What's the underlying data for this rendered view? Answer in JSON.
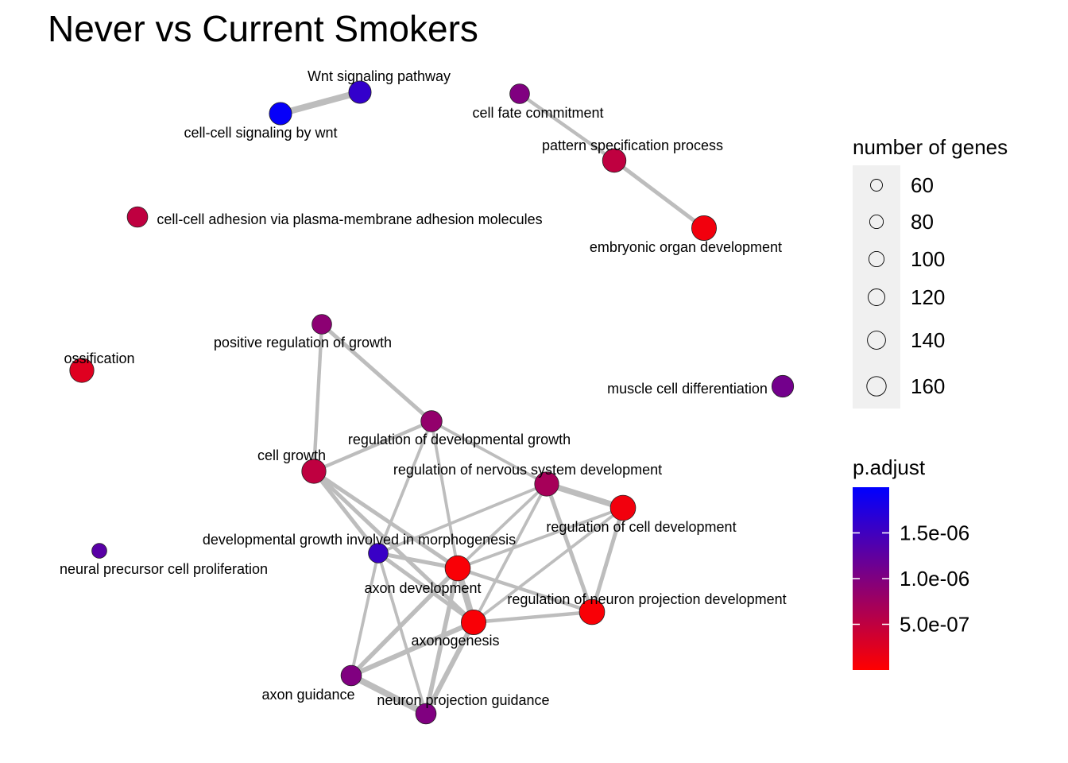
{
  "title": "Never vs Current Smokers",
  "nodes": [
    {
      "id": "wnt_pathway",
      "label": "Wnt signaling pathway",
      "genes": 90,
      "p_adjust": 1.6e-06
    },
    {
      "id": "wnt_cell",
      "label": "cell-cell signaling by wnt",
      "genes": 90,
      "p_adjust": 1.95e-06
    },
    {
      "id": "cell_fate",
      "label": "cell fate commitment",
      "genes": 70,
      "p_adjust": 1e-06
    },
    {
      "id": "pattern_spec",
      "label": "pattern specification process",
      "genes": 100,
      "p_adjust": 5e-07
    },
    {
      "id": "embryonic",
      "label": "embryonic organ development",
      "genes": 110,
      "p_adjust": 1e-07
    },
    {
      "id": "adhesion",
      "label": "cell-cell adhesion via plasma-membrane adhesion molecules",
      "genes": 75,
      "p_adjust": 5e-07
    },
    {
      "id": "pos_growth",
      "label": "positive regulation of growth",
      "genes": 70,
      "p_adjust": 9e-07
    },
    {
      "id": "ossification",
      "label": "ossification",
      "genes": 105,
      "p_adjust": 2.5e-07
    },
    {
      "id": "muscle",
      "label": "muscle cell differentiation",
      "genes": 85,
      "p_adjust": 1.1e-06
    },
    {
      "id": "reg_dev_growth",
      "label": "regulation of developmental growth",
      "genes": 80,
      "p_adjust": 8.5e-07
    },
    {
      "id": "cell_growth",
      "label": "cell growth",
      "genes": 105,
      "p_adjust": 5e-07
    },
    {
      "id": "reg_nervous",
      "label": "regulation of nervous system development",
      "genes": 105,
      "p_adjust": 7e-07
    },
    {
      "id": "reg_cell_dev",
      "label": "regulation of cell development",
      "genes": 115,
      "p_adjust": 1e-07
    },
    {
      "id": "dev_growth_morph",
      "label": "developmental growth involved in morphogenesis",
      "genes": 70,
      "p_adjust": 1.55e-06
    },
    {
      "id": "neural_precursor",
      "label": "neural precursor cell proliferation",
      "genes": 40,
      "p_adjust": 1.3e-06
    },
    {
      "id": "axon_dev",
      "label": "axon development",
      "genes": 115,
      "p_adjust": 5e-08
    },
    {
      "id": "reg_neuron_proj",
      "label": "regulation of neuron projection development",
      "genes": 115,
      "p_adjust": 5e-08
    },
    {
      "id": "axonogenesis",
      "label": "axonogenesis",
      "genes": 110,
      "p_adjust": 5e-08
    },
    {
      "id": "axon_guidance",
      "label": "axon guidance",
      "genes": 75,
      "p_adjust": 1e-06
    },
    {
      "id": "neuron_proj_guid",
      "label": "neuron projection guidance",
      "genes": 75,
      "p_adjust": 1e-06
    }
  ],
  "edges": [
    {
      "source": "wnt_pathway",
      "target": "wnt_cell",
      "weight": 1.0
    },
    {
      "source": "cell_fate",
      "target": "pattern_spec",
      "weight": 0.4
    },
    {
      "source": "pattern_spec",
      "target": "embryonic",
      "weight": 0.5
    },
    {
      "source": "pos_growth",
      "target": "reg_dev_growth",
      "weight": 0.5
    },
    {
      "source": "pos_growth",
      "target": "cell_growth",
      "weight": 0.4
    },
    {
      "source": "reg_dev_growth",
      "target": "cell_growth",
      "weight": 0.4
    },
    {
      "source": "reg_dev_growth",
      "target": "reg_nervous",
      "weight": 0.3
    },
    {
      "source": "reg_dev_growth",
      "target": "dev_growth_morph",
      "weight": 0.3
    },
    {
      "source": "reg_dev_growth",
      "target": "axon_dev",
      "weight": 0.3
    },
    {
      "source": "cell_growth",
      "target": "dev_growth_morph",
      "weight": 0.5
    },
    {
      "source": "cell_growth",
      "target": "axon_dev",
      "weight": 0.5
    },
    {
      "source": "cell_growth",
      "target": "axonogenesis",
      "weight": 0.5
    },
    {
      "source": "reg_nervous",
      "target": "reg_cell_dev",
      "weight": 0.9
    },
    {
      "source": "reg_nervous",
      "target": "axon_dev",
      "weight": 0.3
    },
    {
      "source": "reg_nervous",
      "target": "reg_neuron_proj",
      "weight": 0.5
    },
    {
      "source": "reg_nervous",
      "target": "dev_growth_morph",
      "weight": 0.3
    },
    {
      "source": "reg_nervous",
      "target": "axonogenesis",
      "weight": 0.3
    },
    {
      "source": "reg_cell_dev",
      "target": "axon_dev",
      "weight": 0.3
    },
    {
      "source": "reg_cell_dev",
      "target": "reg_neuron_proj",
      "weight": 0.5
    },
    {
      "source": "reg_cell_dev",
      "target": "axonogenesis",
      "weight": 0.3
    },
    {
      "source": "dev_growth_morph",
      "target": "axon_dev",
      "weight": 0.5
    },
    {
      "source": "dev_growth_morph",
      "target": "axonogenesis",
      "weight": 0.5
    },
    {
      "source": "dev_growth_morph",
      "target": "axon_guidance",
      "weight": 0.3
    },
    {
      "source": "dev_growth_morph",
      "target": "neuron_proj_guid",
      "weight": 0.3
    },
    {
      "source": "axon_dev",
      "target": "axonogenesis",
      "weight": 1.0
    },
    {
      "source": "axon_dev",
      "target": "reg_neuron_proj",
      "weight": 0.4
    },
    {
      "source": "axon_dev",
      "target": "axon_guidance",
      "weight": 0.6
    },
    {
      "source": "axon_dev",
      "target": "neuron_proj_guid",
      "weight": 0.6
    },
    {
      "source": "axonogenesis",
      "target": "reg_neuron_proj",
      "weight": 0.4
    },
    {
      "source": "axonogenesis",
      "target": "axon_guidance",
      "weight": 0.7
    },
    {
      "source": "axonogenesis",
      "target": "neuron_proj_guid",
      "weight": 0.7
    },
    {
      "source": "axon_guidance",
      "target": "neuron_proj_guid",
      "weight": 1.0
    }
  ],
  "legend_size": {
    "title": "number of genes",
    "items": [
      {
        "label": "60",
        "value": 60
      },
      {
        "label": "80",
        "value": 80
      },
      {
        "label": "100",
        "value": 100
      },
      {
        "label": "120",
        "value": 120
      },
      {
        "label": "140",
        "value": 140
      },
      {
        "label": "160",
        "value": 160
      }
    ]
  },
  "legend_color": {
    "title": "p.adjust",
    "ticks": [
      {
        "label": "1.5e-06",
        "value": 1.5e-06
      },
      {
        "label": "1.0e-06",
        "value": 1e-06
      },
      {
        "label": "5.0e-07",
        "value": 5e-07
      }
    ],
    "range": [
      0,
      2e-06
    ],
    "low_color": "#FF0000",
    "high_color": "#0000FF"
  },
  "colors": {
    "edge": "#bdbdbd",
    "node_stroke": "#222222",
    "legend_panel": "#f0f0f0"
  }
}
